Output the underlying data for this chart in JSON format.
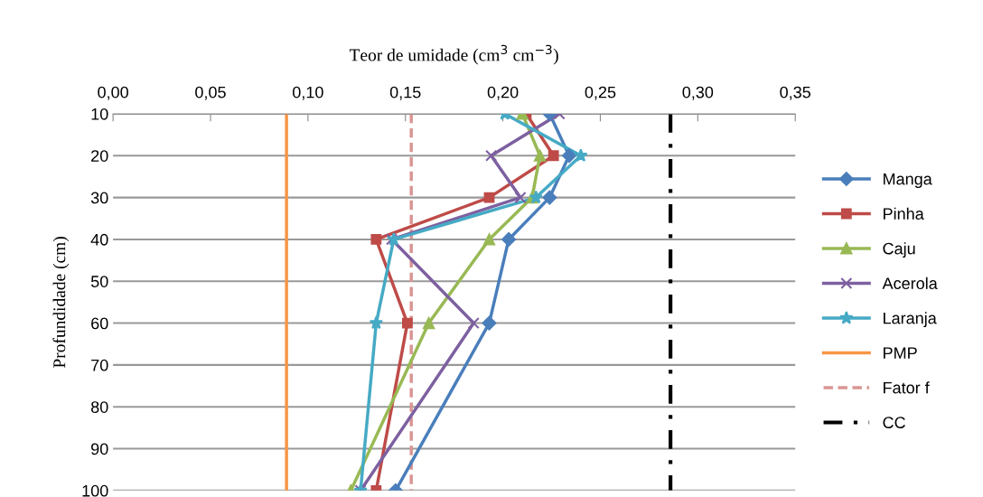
{
  "chart_data": {
    "type": "line",
    "xlabel": "Teor de umidade (cm$^{3}$ cm$^{−3}$)",
    "ylabel": "Profundidade (cm)",
    "series": [
      {
        "name": "Manga",
        "color": "#4a7ebb",
        "marker": "diamond",
        "x": [
          0.224,
          0.234,
          0.224,
          0.203,
          0.193,
          0.145
        ],
        "values": [
          10,
          20,
          30,
          40,
          60,
          100
        ]
      },
      {
        "name": "Pinha",
        "color": "#be4b48",
        "marker": "square",
        "x": [
          0.212,
          0.226,
          0.193,
          0.135,
          0.151,
          0.135
        ],
        "values": [
          10,
          20,
          30,
          40,
          60,
          100
        ]
      },
      {
        "name": "Caju",
        "color": "#98b954",
        "marker": "triangle",
        "x": [
          0.21,
          0.219,
          0.215,
          0.193,
          0.162,
          0.122
        ],
        "values": [
          10,
          20,
          30,
          40,
          60,
          100
        ]
      },
      {
        "name": "Acerola",
        "color": "#7d60a0",
        "marker": "cross",
        "x": [
          0.229,
          0.194,
          0.209,
          0.143,
          0.185,
          0.127
        ],
        "values": [
          10,
          20,
          30,
          40,
          60,
          100
        ]
      },
      {
        "name": "Laranja",
        "color": "#46aac5",
        "marker": "star",
        "x": [
          0.201,
          0.24,
          0.217,
          0.144,
          0.135,
          0.127
        ],
        "values": [
          10,
          20,
          30,
          40,
          60,
          100
        ]
      },
      {
        "name": "PMP",
        "color": "#f79646",
        "marker": "none",
        "line_style": "solid",
        "x": [
          0.089,
          0.089
        ],
        "values": [
          10,
          100
        ]
      },
      {
        "name": "Fator f",
        "color": "#d99694",
        "marker": "none",
        "line_style": "dashed",
        "x": [
          0.153,
          0.153
        ],
        "values": [
          10,
          100
        ]
      },
      {
        "name": "CC",
        "color": "#000000",
        "marker": "none",
        "line_style": "dashdot",
        "x": [
          0.286,
          0.286
        ],
        "values": [
          10,
          100
        ]
      }
    ],
    "xlim": [
      0,
      0.35
    ],
    "xticks": [
      {
        "value": 0,
        "label": "0,00"
      },
      {
        "value": 0.05,
        "label": "0,05"
      },
      {
        "value": 0.1,
        "label": "0,10"
      },
      {
        "value": 0.15,
        "label": "0,15"
      },
      {
        "value": 0.2,
        "label": "0,20"
      },
      {
        "value": 0.25,
        "label": "0,25"
      },
      {
        "value": 0.3,
        "label": "0,30"
      },
      {
        "value": 0.35,
        "label": "0,35"
      }
    ],
    "ylim": [
      100,
      10
    ],
    "yticks": [
      10,
      20,
      30,
      40,
      50,
      60,
      70,
      80,
      90,
      100
    ],
    "grid": "y",
    "legend": "right"
  }
}
